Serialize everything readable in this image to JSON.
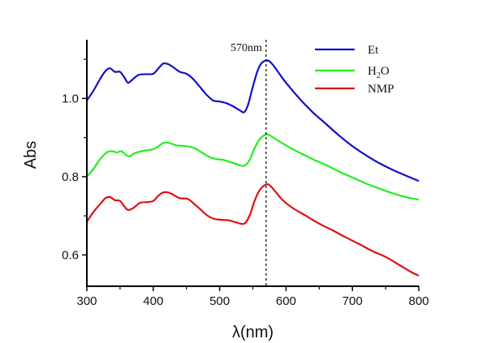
{
  "chart_data": {
    "type": "line",
    "title": "",
    "xlabel": "λ(nm)",
    "ylabel": "Abs",
    "xlim": [
      300,
      800
    ],
    "ylim": [
      0.52,
      1.15
    ],
    "xticks": [
      300,
      400,
      500,
      600,
      700,
      800
    ],
    "xtick_labels": [
      "300",
      "400",
      "500",
      "600",
      "700",
      "800"
    ],
    "yticks": [
      0.6,
      0.8,
      1.0
    ],
    "ytick_labels": [
      "0.6",
      "0.8",
      "1.0"
    ],
    "x_minor_ticks": [
      350,
      450,
      550,
      650,
      750
    ],
    "y_minor_ticks": [
      0.7,
      0.9,
      1.1
    ],
    "grid": false,
    "legend_position": "top-right",
    "annotation": {
      "label": "570nm",
      "x": 570
    },
    "series": [
      {
        "name": "Et",
        "legend_main": "Et",
        "color": "#1010cc",
        "points": [
          [
            300,
            0.995
          ],
          [
            310,
            1.02
          ],
          [
            320,
            1.05
          ],
          [
            328,
            1.07
          ],
          [
            335,
            1.077
          ],
          [
            342,
            1.068
          ],
          [
            350,
            1.068
          ],
          [
            356,
            1.055
          ],
          [
            362,
            1.04
          ],
          [
            368,
            1.047
          ],
          [
            378,
            1.06
          ],
          [
            390,
            1.062
          ],
          [
            400,
            1.063
          ],
          [
            408,
            1.077
          ],
          [
            415,
            1.089
          ],
          [
            422,
            1.088
          ],
          [
            430,
            1.08
          ],
          [
            440,
            1.068
          ],
          [
            450,
            1.063
          ],
          [
            460,
            1.05
          ],
          [
            470,
            1.03
          ],
          [
            480,
            1.01
          ],
          [
            490,
            0.995
          ],
          [
            500,
            0.992
          ],
          [
            510,
            0.988
          ],
          [
            520,
            0.98
          ],
          [
            530,
            0.97
          ],
          [
            537,
            0.965
          ],
          [
            543,
            0.985
          ],
          [
            550,
            1.03
          ],
          [
            557,
            1.07
          ],
          [
            563,
            1.09
          ],
          [
            570,
            1.097
          ],
          [
            575,
            1.095
          ],
          [
            582,
            1.082
          ],
          [
            590,
            1.063
          ],
          [
            600,
            1.04
          ],
          [
            620,
            1.0
          ],
          [
            640,
            0.965
          ],
          [
            660,
            0.935
          ],
          [
            680,
            0.905
          ],
          [
            700,
            0.878
          ],
          [
            720,
            0.855
          ],
          [
            740,
            0.835
          ],
          [
            760,
            0.818
          ],
          [
            780,
            0.803
          ],
          [
            800,
            0.789
          ]
        ]
      },
      {
        "name": "H2O",
        "legend_main": "H",
        "legend_sub": "2",
        "legend_tail": "O",
        "color": "#22ee22",
        "points": [
          [
            300,
            0.8
          ],
          [
            310,
            0.82
          ],
          [
            320,
            0.845
          ],
          [
            330,
            0.862
          ],
          [
            338,
            0.865
          ],
          [
            345,
            0.862
          ],
          [
            352,
            0.865
          ],
          [
            358,
            0.857
          ],
          [
            364,
            0.852
          ],
          [
            372,
            0.86
          ],
          [
            385,
            0.866
          ],
          [
            400,
            0.87
          ],
          [
            408,
            0.878
          ],
          [
            416,
            0.887
          ],
          [
            425,
            0.886
          ],
          [
            435,
            0.88
          ],
          [
            450,
            0.878
          ],
          [
            462,
            0.873
          ],
          [
            475,
            0.86
          ],
          [
            485,
            0.85
          ],
          [
            495,
            0.845
          ],
          [
            505,
            0.843
          ],
          [
            515,
            0.838
          ],
          [
            525,
            0.832
          ],
          [
            537,
            0.828
          ],
          [
            545,
            0.842
          ],
          [
            552,
            0.87
          ],
          [
            560,
            0.895
          ],
          [
            570,
            0.908
          ],
          [
            578,
            0.903
          ],
          [
            590,
            0.89
          ],
          [
            605,
            0.875
          ],
          [
            620,
            0.862
          ],
          [
            640,
            0.845
          ],
          [
            660,
            0.83
          ],
          [
            680,
            0.813
          ],
          [
            700,
            0.798
          ],
          [
            720,
            0.783
          ],
          [
            740,
            0.77
          ],
          [
            760,
            0.758
          ],
          [
            780,
            0.748
          ],
          [
            800,
            0.741
          ]
        ]
      },
      {
        "name": "NMP",
        "legend_main": "NMP",
        "color": "#dd1111",
        "points": [
          [
            300,
            0.685
          ],
          [
            310,
            0.71
          ],
          [
            320,
            0.73
          ],
          [
            328,
            0.745
          ],
          [
            335,
            0.748
          ],
          [
            342,
            0.74
          ],
          [
            350,
            0.738
          ],
          [
            356,
            0.725
          ],
          [
            362,
            0.715
          ],
          [
            370,
            0.72
          ],
          [
            380,
            0.733
          ],
          [
            390,
            0.735
          ],
          [
            400,
            0.738
          ],
          [
            408,
            0.752
          ],
          [
            416,
            0.76
          ],
          [
            424,
            0.759
          ],
          [
            432,
            0.752
          ],
          [
            440,
            0.745
          ],
          [
            452,
            0.743
          ],
          [
            462,
            0.73
          ],
          [
            472,
            0.715
          ],
          [
            482,
            0.7
          ],
          [
            492,
            0.692
          ],
          [
            502,
            0.69
          ],
          [
            515,
            0.688
          ],
          [
            525,
            0.683
          ],
          [
            537,
            0.68
          ],
          [
            545,
            0.7
          ],
          [
            552,
            0.735
          ],
          [
            560,
            0.765
          ],
          [
            570,
            0.78
          ],
          [
            576,
            0.777
          ],
          [
            585,
            0.76
          ],
          [
            595,
            0.74
          ],
          [
            610,
            0.72
          ],
          [
            630,
            0.7
          ],
          [
            650,
            0.68
          ],
          [
            670,
            0.663
          ],
          [
            690,
            0.645
          ],
          [
            710,
            0.628
          ],
          [
            730,
            0.61
          ],
          [
            750,
            0.595
          ],
          [
            770,
            0.575
          ],
          [
            790,
            0.555
          ],
          [
            800,
            0.547
          ]
        ]
      }
    ]
  }
}
